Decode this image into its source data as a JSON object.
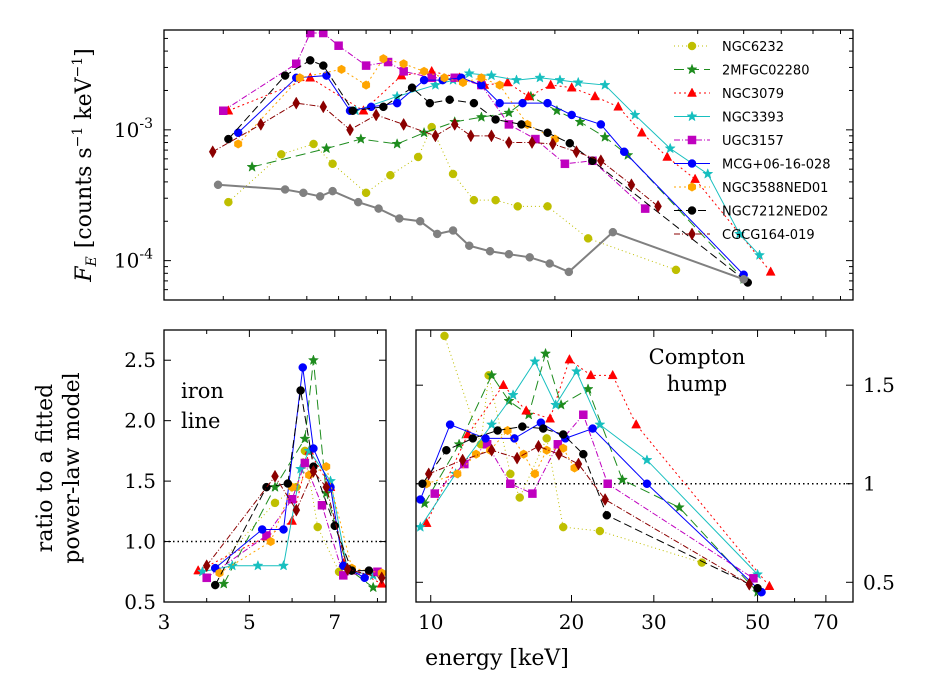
{
  "chart_data": [
    {
      "id": "top",
      "type": "line",
      "xscale": "log",
      "yscale": "log",
      "xlim": [
        3,
        85
      ],
      "ylim": [
        5e-05,
        0.0058
      ],
      "ylabel_parts": [
        "F",
        "E",
        "[counts s",
        "−1",
        " keV",
        "−1",
        "]"
      ],
      "yticks": [
        {
          "value": 0.0001,
          "base": "10",
          "exp": "-4"
        },
        {
          "value": 0.001,
          "base": "10",
          "exp": "-3"
        }
      ],
      "legend_location": "top-right",
      "series": [
        {
          "name": "NGC6232",
          "color": "#bfbf00",
          "marker": "circle",
          "dash": "1,3",
          "x": [
            4.1,
            5.3,
            6.2,
            6.8,
            8.0,
            9.0,
            10.3,
            11.0,
            12.2,
            13.5,
            15.0,
            16.7,
            19.3,
            23.5,
            36.0
          ],
          "y": [
            0.00028,
            0.00065,
            0.00078,
            0.00055,
            0.00033,
            0.00045,
            0.00062,
            0.00105,
            0.00046,
            0.00029,
            0.00029,
            0.00026,
            0.00026,
            0.000148,
            8.5e-05
          ]
        },
        {
          "name": "2MFGC02280",
          "color": "#1e8c1e",
          "marker": "star",
          "dash": "10,5",
          "x": [
            4.6,
            6.6,
            7.8,
            9.3,
            10.6,
            12.3,
            14.0,
            16.0,
            17.8,
            20.2,
            22.6,
            25.5,
            28.5,
            50.0
          ],
          "y": [
            0.00052,
            0.00072,
            0.00085,
            0.00078,
            0.00095,
            0.00115,
            0.00125,
            0.00135,
            0.0018,
            0.0014,
            0.00115,
            0.00088,
            0.00064,
            7.2e-05
          ]
        },
        {
          "name": "NGC3079",
          "color": "#ff0000",
          "marker": "triangle",
          "dash": "2,3",
          "x": [
            4.1,
            6.1,
            7.9,
            9.5,
            11.0,
            12.6,
            14.2,
            15.9,
            17.6,
            19.6,
            21.7,
            24.3,
            27.2,
            30.5,
            34.5,
            39.5,
            57.0
          ],
          "y": [
            0.0014,
            0.0025,
            0.0014,
            0.0026,
            0.0028,
            0.0025,
            0.0022,
            0.0023,
            0.0018,
            0.0022,
            0.0021,
            0.0018,
            0.0015,
            0.00095,
            0.00062,
            0.00042,
            8.2e-05
          ]
        },
        {
          "name": "NGC3393",
          "color": "#17bfbf",
          "marker": "star",
          "dash": "none",
          "x": [
            7.6,
            9.3,
            11.2,
            12.2,
            13.2,
            14.7,
            16.6,
            18.6,
            20.5,
            22.4,
            25.5,
            29.5,
            35.0,
            42.0,
            49.0,
            54.0
          ],
          "y": [
            0.0014,
            0.0018,
            0.0022,
            0.0024,
            0.0027,
            0.0026,
            0.0024,
            0.0025,
            0.0024,
            0.0023,
            0.0022,
            0.0013,
            0.00072,
            0.00046,
            0.00016,
            0.00011
          ]
        },
        {
          "name": "UGC3157",
          "color": "#bf00bf",
          "marker": "square",
          "dash": "6,2,1,2",
          "x": [
            4.0,
            5.7,
            6.1,
            6.5,
            7.0,
            8.0,
            8.9,
            9.6,
            11.0,
            12.3,
            14.0,
            16.0,
            18.2,
            21.0,
            24.0,
            31.0
          ],
          "y": [
            0.0014,
            0.0032,
            0.0055,
            0.0055,
            0.0044,
            0.0031,
            0.0033,
            0.0028,
            0.0025,
            0.0025,
            0.0022,
            0.0011,
            0.00085,
            0.00055,
            0.00058,
            0.00025
          ]
        },
        {
          "name": "MCG+06-16-028",
          "color": "#0000ff",
          "marker": "circle",
          "dash": "none",
          "x": [
            4.3,
            5.7,
            6.6,
            7.4,
            8.2,
            9.3,
            10.6,
            11.6,
            12.7,
            14.0,
            15.3,
            17.1,
            19.3,
            21.7,
            25.0,
            28.0,
            50.0
          ],
          "y": [
            0.00095,
            0.0025,
            0.0026,
            0.0014,
            0.0015,
            0.0016,
            0.0024,
            0.0024,
            0.0025,
            0.0022,
            0.0016,
            0.0016,
            0.0016,
            0.0013,
            0.0011,
            0.00068,
            7.8e-05
          ]
        },
        {
          "name": "NGC3588NED01",
          "color": "#ffa500",
          "marker": "hexagon",
          "dash": "2,3",
          "x": [
            4.3,
            5.8,
            7.1,
            8.0,
            8.7,
            9.6,
            10.6,
            11.7,
            12.8,
            14.0,
            15.3,
            17.5,
            20.0
          ],
          "y": [
            0.00078,
            0.0025,
            0.0029,
            0.0022,
            0.0035,
            0.0032,
            0.0028,
            0.0025,
            0.0023,
            0.0025,
            0.0022,
            0.0011,
            0.00085
          ]
        },
        {
          "name": "NGC7212NED02",
          "color": "#000000",
          "marker": "circle",
          "dash": "8,4",
          "x": [
            4.1,
            5.4,
            6.1,
            6.5,
            7.5,
            8.7,
            10.0,
            10.9,
            12.0,
            13.5,
            15.0,
            17.0,
            19.3,
            21.5,
            24.0,
            51.0
          ],
          "y": [
            0.00085,
            0.0026,
            0.0034,
            0.0031,
            0.0014,
            0.0015,
            0.0021,
            0.0016,
            0.0017,
            0.0016,
            0.0012,
            0.0011,
            0.00095,
            0.00079,
            0.00058,
            6.8e-05
          ]
        },
        {
          "name": "CGCG164-019",
          "color": "#8b0000",
          "marker": "diamond",
          "dash": "6,2,1,2",
          "x": [
            3.8,
            4.8,
            5.7,
            6.5,
            7.4,
            8.4,
            9.6,
            11.2,
            12.3,
            13.3,
            14.7,
            16.0,
            17.9,
            19.8,
            22.2,
            25.0,
            29.0,
            33.0
          ],
          "y": [
            0.00068,
            0.0011,
            0.0016,
            0.0015,
            0.001,
            0.0013,
            0.0011,
            0.0009,
            0.0011,
            0.0009,
            0.0009,
            0.0008,
            0.0008,
            0.00078,
            0.00068,
            0.00058,
            0.00038,
            0.00026
          ]
        },
        {
          "name": "",
          "color": "#808080",
          "marker": "circle",
          "dash": "none",
          "x": [
            3.9,
            5.4,
            5.9,
            6.4,
            6.8,
            7.7,
            8.5,
            9.4,
            10.4,
            11.3,
            12.2,
            13.2,
            14.6,
            16.0,
            17.7,
            19.5,
            21.4,
            26.5,
            50.0
          ],
          "y": [
            0.00038,
            0.00035,
            0.00033,
            0.00031,
            0.00034,
            0.00028,
            0.00025,
            0.00021,
            0.0002,
            0.00016,
            0.00017,
            0.00013,
            0.000118,
            0.000112,
            0.000106,
            9.5e-05,
            8.2e-05,
            0.000165,
            7.2e-05
          ]
        }
      ]
    },
    {
      "id": "iron",
      "type": "line",
      "xlim": [
        3,
        8.2
      ],
      "ylim": [
        0.5,
        2.75
      ],
      "xticks": [
        3,
        5,
        7
      ],
      "xtick_labels": [
        "3",
        "5",
        "7"
      ],
      "yticks": [
        0.5,
        1.0,
        1.5,
        2.0,
        2.5
      ],
      "ytick_labels": [
        "0.5",
        "1.0",
        "1.5",
        "2.0",
        "2.5"
      ],
      "ylabel_lines": [
        "ratio to a fitted",
        "power-law model"
      ],
      "annotation": [
        "iron",
        "line"
      ],
      "reference_line": 1.0,
      "series": [
        {
          "name": "NGC6232",
          "color": "#bfbf00",
          "marker": "circle",
          "dash": "1,3",
          "x": [
            4.2,
            5.6,
            6.1,
            6.3,
            6.6,
            7.1
          ],
          "y": [
            0.78,
            1.32,
            1.45,
            1.75,
            1.12,
            0.75
          ]
        },
        {
          "name": "2MFGC02280",
          "color": "#1e8c1e",
          "marker": "star",
          "dash": "10,5",
          "x": [
            4.4,
            5.6,
            6.3,
            6.5,
            6.8,
            7.3,
            7.9
          ],
          "y": [
            0.65,
            1.45,
            1.85,
            2.5,
            1.4,
            0.78,
            0.62
          ]
        },
        {
          "name": "NGC3079",
          "color": "#ff0000",
          "marker": "triangle",
          "dash": "2,3",
          "x": [
            3.8,
            5.4,
            6.0,
            6.4,
            6.9,
            7.2,
            8.1
          ],
          "y": [
            0.76,
            1.04,
            1.17,
            1.75,
            1.45,
            0.82,
            0.65
          ]
        },
        {
          "name": "NGC3393",
          "color": "#17bfbf",
          "marker": "star",
          "dash": "none",
          "x": [
            3.9,
            4.6,
            5.2,
            5.8,
            6.2,
            6.4,
            6.9,
            7.3,
            7.9
          ],
          "y": [
            0.75,
            0.8,
            0.8,
            0.8,
            1.6,
            1.75,
            1.5,
            0.76,
            0.72
          ]
        },
        {
          "name": "UGC3157",
          "color": "#bf00bf",
          "marker": "square",
          "dash": "6,2,1,2",
          "x": [
            4.0,
            5.4,
            6.0,
            6.3,
            6.7,
            7.2,
            8.0
          ],
          "y": [
            0.7,
            1.05,
            1.35,
            1.65,
            1.3,
            0.72,
            0.75
          ]
        },
        {
          "name": "MCG+06-16-028",
          "color": "#0000ff",
          "marker": "circle",
          "dash": "none",
          "x": [
            4.2,
            5.3,
            5.8,
            6.25,
            6.5,
            6.9,
            7.2,
            7.7
          ],
          "y": [
            0.78,
            1.1,
            1.1,
            2.44,
            1.77,
            1.45,
            0.8,
            0.7
          ]
        },
        {
          "name": "NGC3588NED01",
          "color": "#ffa500",
          "marker": "hexagon",
          "dash": "2,3",
          "x": [
            4.3,
            5.5,
            6.0,
            6.4,
            6.8,
            7.4,
            8.1
          ],
          "y": [
            0.74,
            1.0,
            1.45,
            1.55,
            1.62,
            0.78,
            0.74
          ]
        },
        {
          "name": "NGC7212NED02",
          "color": "#000000",
          "marker": "circle",
          "dash": "8,4",
          "x": [
            4.2,
            5.4,
            5.9,
            6.2,
            6.5,
            7.0,
            7.4,
            7.8
          ],
          "y": [
            0.64,
            1.45,
            1.48,
            2.25,
            1.62,
            1.13,
            0.76,
            0.76
          ]
        },
        {
          "name": "CGCG164-019",
          "color": "#8b0000",
          "marker": "diamond",
          "dash": "6,2,1,2",
          "x": [
            4.0,
            5.6,
            6.1,
            6.5,
            6.8,
            7.3,
            8.1
          ],
          "y": [
            0.8,
            1.54,
            1.26,
            1.58,
            1.45,
            0.77,
            0.7
          ]
        }
      ]
    },
    {
      "id": "compton",
      "type": "line",
      "xscale": "log",
      "xlim": [
        9.3,
        80
      ],
      "ylim": [
        0.4,
        1.78
      ],
      "xticks": [
        10,
        20,
        30,
        50,
        70
      ],
      "xtick_labels": [
        "10",
        "20",
        "30",
        "50",
        "70"
      ],
      "yticks": [
        0.5,
        1.0,
        1.5
      ],
      "ytick_labels": [
        "0.5",
        "1",
        "1.5"
      ],
      "yaxis_side": "right",
      "annotation": [
        "Compton",
        "hump"
      ],
      "reference_line": 1.0,
      "series": [
        {
          "name": "NGC6232",
          "color": "#bfbf00",
          "marker": "circle",
          "dash": "1,3",
          "x": [
            10.7,
            12.8,
            13.3,
            14.8,
            15.5,
            17.7,
            19.2,
            23.0,
            38.0
          ],
          "y": [
            1.75,
            1.2,
            1.55,
            1.05,
            0.93,
            1.23,
            0.78,
            0.76,
            0.6
          ]
        },
        {
          "name": "2MFGC02280",
          "color": "#1e8c1e",
          "marker": "star",
          "dash": "10,5",
          "x": [
            9.7,
            11.5,
            13.5,
            14.7,
            16.2,
            17.6,
            19.0,
            21.7,
            25.7,
            34.0,
            50.0
          ],
          "y": [
            0.9,
            1.2,
            1.55,
            1.42,
            1.35,
            1.66,
            1.4,
            1.48,
            1.02,
            0.88,
            0.45
          ]
        },
        {
          "name": "NGC3079",
          "color": "#ff0000",
          "marker": "triangle",
          "dash": "2,3",
          "x": [
            9.8,
            12.0,
            14.3,
            16.0,
            18.0,
            19.8,
            22.0,
            24.5,
            27.5,
            53.0
          ],
          "y": [
            0.8,
            1.25,
            1.5,
            1.37,
            1.33,
            1.63,
            1.55,
            1.55,
            1.3,
            0.48
          ]
        },
        {
          "name": "NGC3393",
          "color": "#17bfbf",
          "marker": "star",
          "dash": "none",
          "x": [
            9.5,
            11.3,
            13.5,
            15.0,
            16.7,
            18.5,
            20.5,
            23.0,
            29.0,
            50.0
          ],
          "y": [
            0.78,
            1.05,
            1.3,
            1.45,
            1.62,
            1.4,
            1.57,
            1.3,
            1.12,
            0.54
          ]
        },
        {
          "name": "UGC3157",
          "color": "#bf00bf",
          "marker": "square",
          "dash": "6,2,1,2",
          "x": [
            10.2,
            11.8,
            13.2,
            14.8,
            16.5,
            18.7,
            21.2,
            23.9,
            49.0
          ],
          "y": [
            0.95,
            1.1,
            1.2,
            1.0,
            0.95,
            1.2,
            1.35,
            1.0,
            0.52
          ]
        },
        {
          "name": "MCG+06-16-028",
          "color": "#0000ff",
          "marker": "circle",
          "dash": "none",
          "x": [
            9.5,
            11.0,
            13.1,
            15.1,
            17.2,
            19.4,
            22.2,
            29.0,
            51.0
          ],
          "y": [
            0.92,
            1.3,
            1.23,
            1.23,
            1.31,
            1.23,
            1.28,
            1.0,
            0.45
          ]
        },
        {
          "name": "NGC3588NED01",
          "color": "#ffa500",
          "marker": "hexagon",
          "dash": "2,3",
          "x": [
            9.8,
            11.4,
            12.5,
            13.4,
            14.6,
            15.8,
            16.7,
            17.7,
            19.2,
            20.3
          ],
          "y": [
            1.0,
            1.05,
            1.15,
            1.17,
            1.27,
            1.15,
            1.05,
            1.17,
            1.18,
            1.08
          ]
        },
        {
          "name": "NGC7212NED02",
          "color": "#000000",
          "marker": "circle",
          "dash": "8,4",
          "x": [
            9.6,
            10.8,
            12.3,
            13.9,
            15.7,
            17.4,
            19.2,
            21.2,
            23.8,
            50.0
          ],
          "y": [
            1.0,
            1.17,
            1.23,
            1.27,
            1.29,
            1.28,
            1.25,
            1.15,
            0.84,
            0.47
          ]
        },
        {
          "name": "CGCG164-019",
          "color": "#8b0000",
          "marker": "diamond",
          "dash": "6,2,1,2",
          "x": [
            9.9,
            11.7,
            13.5,
            15.3,
            17.0,
            18.8,
            20.7,
            23.6,
            48.0
          ],
          "y": [
            1.05,
            1.12,
            1.17,
            1.13,
            1.19,
            1.15,
            1.1,
            0.92,
            0.49
          ]
        }
      ]
    }
  ],
  "xlabel": "energy [keV]"
}
